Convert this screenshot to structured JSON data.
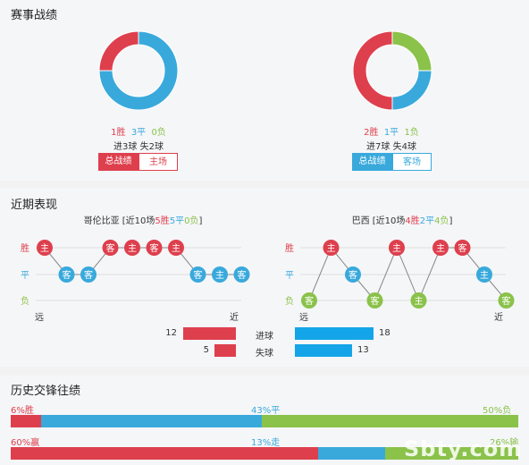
{
  "section1": {
    "title": "赛事战绩",
    "left": {
      "win": "1胜",
      "draw": "3平",
      "loss": "0负",
      "goals": "进3球  失2球",
      "btn_total": "总战绩",
      "btn_side": "主场",
      "donut": [
        {
          "value": 1,
          "color": "#de3f4d"
        },
        {
          "value": 3,
          "color": "#39a9dc"
        },
        {
          "value": 0,
          "color": "#8ac24a"
        }
      ]
    },
    "right": {
      "win": "2胜",
      "draw": "1平",
      "loss": "1负",
      "goals": "进7球  失4球",
      "btn_total": "总战绩",
      "btn_side": "客场",
      "donut": [
        {
          "value": 2,
          "color": "#de3f4d"
        },
        {
          "value": 1,
          "color": "#39a9dc"
        },
        {
          "value": 1,
          "color": "#8ac24a"
        }
      ]
    }
  },
  "section2": {
    "title": "近期表现",
    "left": {
      "team": "哥伦比亚",
      "summary_pre": " [近10场",
      "win": "5胜",
      "draw": "5平",
      "loss": "0负",
      "summary_post": "]",
      "axis_far": "远",
      "axis_near": "近",
      "row_win": "胜",
      "row_draw": "平",
      "row_loss": "负",
      "results": [
        {
          "r": "W",
          "venue": "主"
        },
        {
          "r": "D",
          "venue": "客"
        },
        {
          "r": "D",
          "venue": "客"
        },
        {
          "r": "W",
          "venue": "客"
        },
        {
          "r": "W",
          "venue": "主"
        },
        {
          "r": "W",
          "venue": "客"
        },
        {
          "r": "W",
          "venue": "主"
        },
        {
          "r": "D",
          "venue": "客"
        },
        {
          "r": "D",
          "venue": "主"
        },
        {
          "r": "D",
          "venue": "客"
        }
      ]
    },
    "right": {
      "team": "巴西",
      "summary_pre": " [近10场",
      "win": "4胜",
      "draw": "2平",
      "loss": "4负",
      "summary_post": "]",
      "axis_far": "远",
      "axis_near": "近",
      "row_win": "胜",
      "row_draw": "平",
      "row_loss": "负",
      "results": [
        {
          "r": "L",
          "venue": "客"
        },
        {
          "r": "W",
          "venue": "主"
        },
        {
          "r": "D",
          "venue": "客"
        },
        {
          "r": "L",
          "venue": "客"
        },
        {
          "r": "W",
          "venue": "主"
        },
        {
          "r": "L",
          "venue": "主"
        },
        {
          "r": "W",
          "venue": "主"
        },
        {
          "r": "W",
          "venue": "客"
        },
        {
          "r": "D",
          "venue": "主"
        },
        {
          "r": "L",
          "venue": "客"
        }
      ]
    },
    "goals_for": {
      "label": "进球",
      "left": "12",
      "right": "18",
      "left_value": 12,
      "right_value": 18
    },
    "goals_against": {
      "label": "失球",
      "left": "5",
      "right": "13",
      "left_value": 5,
      "right_value": 13
    }
  },
  "section3": {
    "title": "历史交锋往绩",
    "row1": {
      "win": "6%胜",
      "draw": "43%平",
      "loss": "50%负",
      "win_pct": 6,
      "draw_pct": 43,
      "loss_pct": 50
    },
    "row2": {
      "win": "60%赢",
      "draw": "13%走",
      "loss": "26%输",
      "win_pct": 60,
      "draw_pct": 13,
      "loss_pct": 26
    },
    "watermark": "Sbty.com"
  },
  "colors": {
    "win": "#de3f4d",
    "draw": "#39a9dc",
    "loss": "#8ac24a"
  }
}
